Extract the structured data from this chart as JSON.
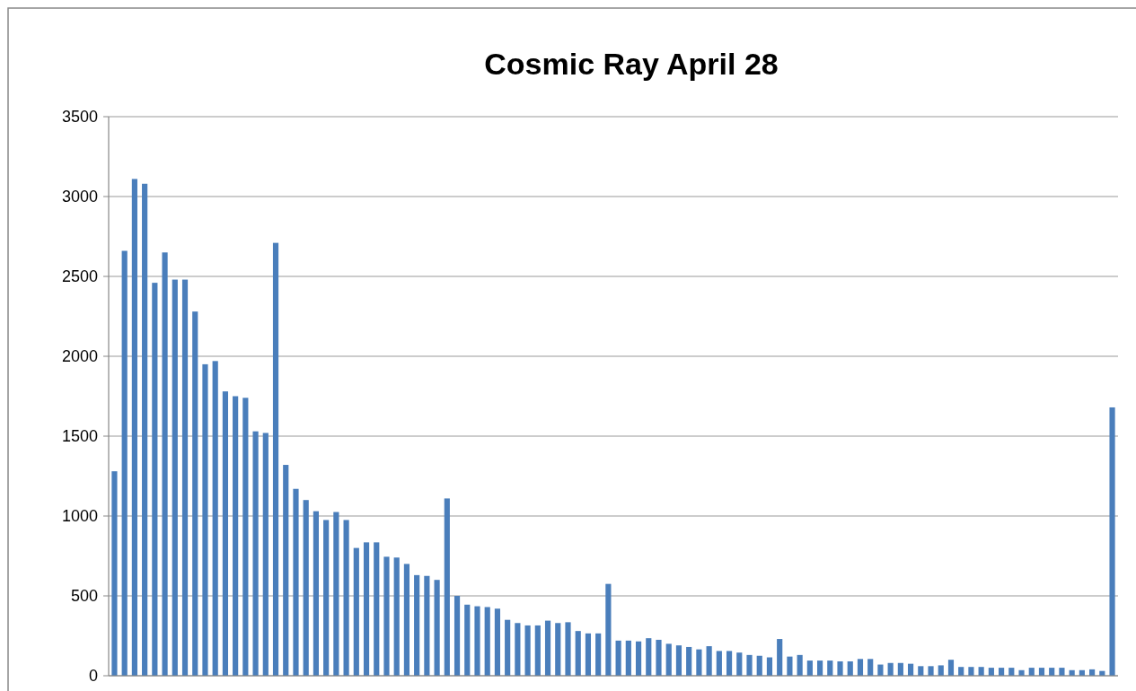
{
  "chart_data": {
    "type": "bar",
    "title": "Cosmic Ray April 28",
    "color": "#4a7ebb",
    "ylim": [
      0,
      3500
    ],
    "yticks": [
      0,
      500,
      1000,
      1500,
      2000,
      2500,
      3000,
      3500
    ],
    "grid": "y",
    "categories": [
      null,
      null,
      null,
      null,
      null,
      null,
      null,
      null,
      null,
      null,
      null,
      null,
      null,
      null,
      null,
      null,
      null,
      null,
      null,
      null,
      null,
      null,
      null,
      null,
      null,
      null,
      null,
      null,
      null,
      null,
      null,
      null,
      null,
      null,
      null,
      null,
      null,
      null,
      null,
      null,
      null,
      null,
      null,
      null,
      null,
      null,
      null,
      null,
      null,
      null,
      null,
      null,
      null,
      null,
      null,
      null,
      null,
      null,
      null,
      null,
      null,
      null,
      null,
      null,
      null,
      null,
      null,
      null,
      null,
      null,
      null,
      null,
      null,
      null,
      null,
      null,
      null,
      null,
      null,
      null,
      null,
      null,
      null,
      null,
      null,
      null,
      null,
      null,
      null,
      null,
      null,
      null,
      null,
      null,
      null,
      null,
      null,
      null,
      null,
      null
    ],
    "values": [
      1280,
      2660,
      3110,
      3080,
      2460,
      2650,
      2480,
      2480,
      2280,
      1950,
      1970,
      1780,
      1750,
      1740,
      1530,
      1520,
      2710,
      1320,
      1170,
      1100,
      1030,
      975,
      1025,
      975,
      800,
      835,
      835,
      745,
      740,
      700,
      630,
      625,
      600,
      1110,
      500,
      445,
      435,
      430,
      420,
      350,
      330,
      315,
      315,
      345,
      330,
      335,
      280,
      265,
      265,
      575,
      220,
      220,
      215,
      235,
      225,
      200,
      190,
      180,
      165,
      185,
      155,
      155,
      145,
      130,
      125,
      115,
      230,
      120,
      130,
      95,
      95,
      95,
      90,
      90,
      105,
      105,
      70,
      80,
      80,
      75,
      60,
      60,
      65,
      100,
      55,
      55,
      55,
      50,
      50,
      50,
      35,
      50,
      50,
      50,
      50,
      35,
      35,
      40,
      30,
      1680
    ]
  }
}
